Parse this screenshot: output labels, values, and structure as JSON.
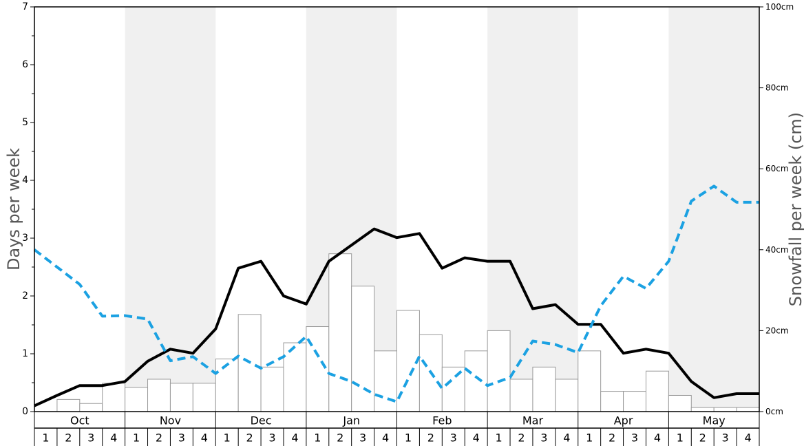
{
  "chart_data": {
    "type": "bar",
    "y_left_label": "Days per week",
    "y_right_label": "Snowfall per week (cm)",
    "y_left_range": [
      0,
      7
    ],
    "y_left_ticks": [
      "0",
      "1",
      "2",
      "3",
      "4",
      "5",
      "6",
      "7"
    ],
    "y_right_range": [
      0,
      100
    ],
    "y_right_ticks": [
      "0cm",
      "20cm",
      "40cm",
      "60cm",
      "80cm",
      "100cm"
    ],
    "months": [
      {
        "label": "Oct",
        "shaded": false
      },
      {
        "label": "Nov",
        "shaded": true
      },
      {
        "label": "Dec",
        "shaded": false
      },
      {
        "label": "Jan",
        "shaded": true
      },
      {
        "label": "Feb",
        "shaded": false
      },
      {
        "label": "Mar",
        "shaded": true
      },
      {
        "label": "Apr",
        "shaded": false
      },
      {
        "label": "May",
        "shaded": true
      }
    ],
    "weeks": [
      "1",
      "2",
      "3",
      "4"
    ],
    "series": [
      {
        "name": "Snowfall per week (cm)",
        "kind": "bar",
        "axis": "right",
        "values": [
          0,
          3,
          2,
          7,
          6,
          8,
          7,
          7,
          13,
          24,
          11,
          17,
          21,
          39,
          31,
          15,
          25,
          19,
          11,
          15,
          20,
          8,
          11,
          8,
          15,
          5,
          5,
          10,
          4,
          1,
          1,
          1
        ]
      },
      {
        "kind": "line",
        "style": "solid",
        "axis": "left",
        "values": [
          0.1,
          0.28,
          0.45,
          0.45,
          0.52,
          0.87,
          1.08,
          1.01,
          1.43,
          2.48,
          2.6,
          2.0,
          1.86,
          2.6,
          2.88,
          3.16,
          3.01,
          3.08,
          2.48,
          2.66,
          2.6,
          2.6,
          1.78,
          1.85,
          1.51,
          1.51,
          1.01,
          1.08,
          1.01,
          0.52,
          0.24,
          0.31,
          0.31
        ]
      },
      {
        "kind": "line",
        "style": "dashed",
        "axis": "left",
        "values": [
          2.8,
          2.5,
          2.2,
          1.65,
          1.66,
          1.6,
          0.88,
          0.95,
          0.66,
          0.96,
          0.75,
          0.95,
          1.3,
          0.66,
          0.52,
          0.3,
          0.17,
          0.96,
          0.4,
          0.75,
          0.45,
          0.59,
          1.22,
          1.16,
          1.02,
          1.83,
          2.34,
          2.13,
          2.6,
          3.64,
          3.9,
          3.62,
          3.62
        ]
      }
    ],
    "colors": {
      "bar_fill": "#ffffff",
      "bar_stroke": "#999999",
      "shade": "#f0f0f0",
      "solid_line": "#000000",
      "dashed_line": "#1ba1e2",
      "axis_title": "#555555"
    }
  }
}
